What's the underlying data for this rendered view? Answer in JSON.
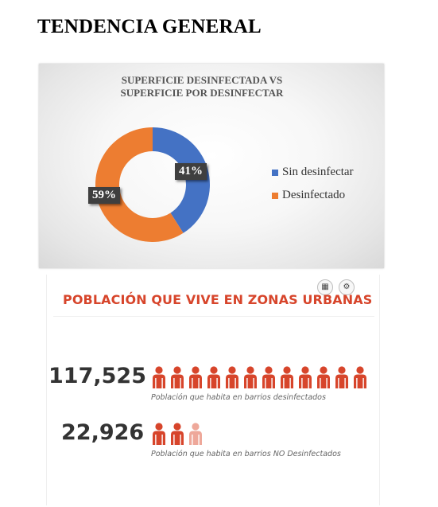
{
  "page_title": "TENDENCIA GENERAL",
  "donut_chart": {
    "title_line1": "SUPERFICIE DESINFECTADA VS",
    "title_line2": "SUPERFICIE POR DESINFECTAR",
    "colors": {
      "sin_desinfectar": "#4472c4",
      "desinfectado": "#ed7d31"
    },
    "legend": [
      "Sin desinfectar",
      "Desinfectado"
    ],
    "label_sin_desinfectar": "41%",
    "label_desinfectado": "59%"
  },
  "chart_data": {
    "type": "pie",
    "title": "SUPERFICIE DESINFECTADA VS SUPERFICIE POR DESINFECTAR",
    "categories": [
      "Sin desinfectar",
      "Desinfectado"
    ],
    "values": [
      41,
      59
    ],
    "legend_position": "right"
  },
  "urban_panel": {
    "title": "POBLACIÓN QUE VIVE EN ZONAS URBANAS",
    "tools": {
      "table_icon": "table-icon",
      "settings_icon": "gear-icon"
    },
    "accent_color": "#d7452b",
    "rows": [
      {
        "value": "117,525",
        "caption": "Población que habita en barrios desinfectados",
        "icon_count": 12,
        "icon_color": "#d7452b"
      },
      {
        "value": "22,926",
        "caption": "Población que habita en barrios NO Desinfectados",
        "icon_count": 3,
        "icon_color": "#d7452b"
      }
    ]
  }
}
